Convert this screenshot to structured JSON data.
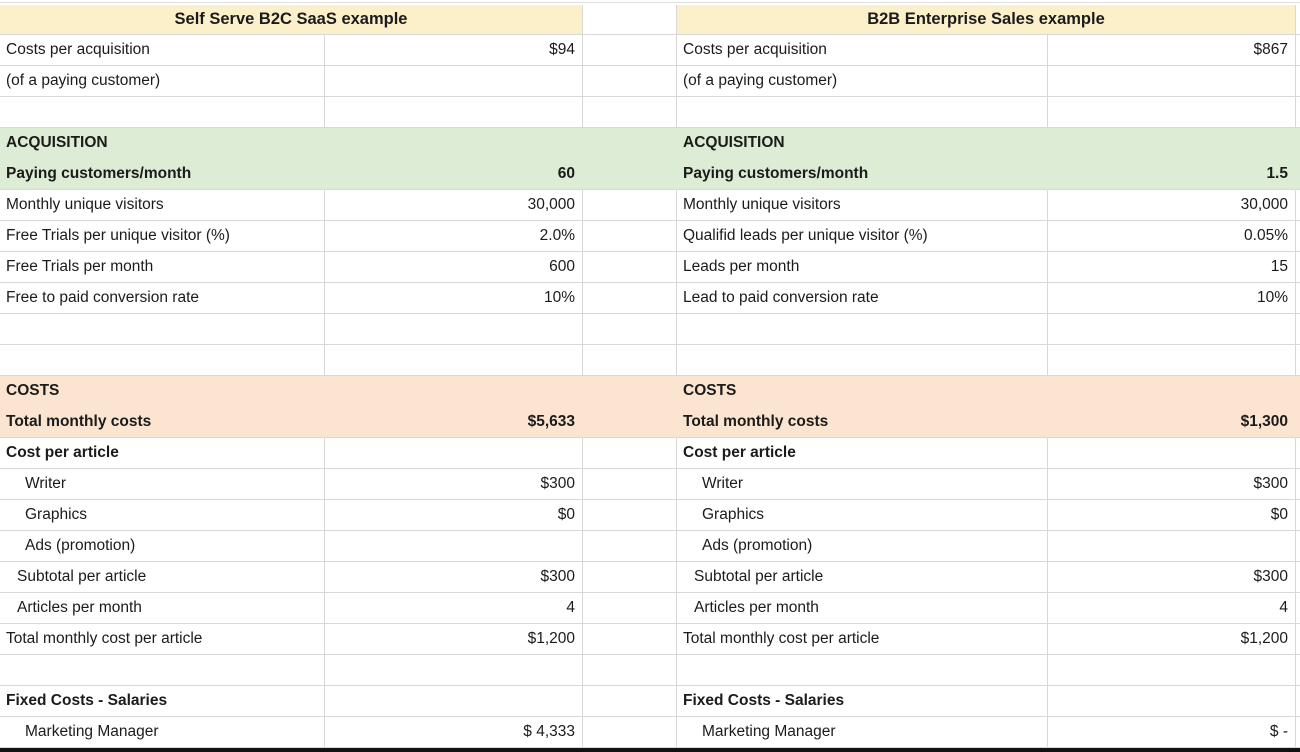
{
  "titles": {
    "left": "Self Serve B2C SaaS example",
    "right": "B2B Enterprise Sales example"
  },
  "colors": {
    "header_bg": "#fcf0ca",
    "green_bg": "#ddecd5",
    "orange_bg": "#fbe5d0",
    "grid": "#d8d8d8",
    "bottom_bar": "#121212"
  },
  "rows": [
    {
      "band": "none",
      "bold": false,
      "indent": 0,
      "left": {
        "label": "Costs per acquisition",
        "value": "$94"
      },
      "right": {
        "label": "Costs per acquisition",
        "value": "$867"
      }
    },
    {
      "band": "none",
      "bold": false,
      "indent": 0,
      "left": {
        "label": "(of a paying customer)",
        "value": ""
      },
      "right": {
        "label": "(of a paying customer)",
        "value": ""
      }
    },
    {
      "band": "none",
      "bold": false,
      "indent": 0,
      "left": {
        "label": "",
        "value": ""
      },
      "right": {
        "label": "",
        "value": ""
      }
    },
    {
      "band": "green",
      "bold": true,
      "indent": 0,
      "left": {
        "label": "ACQUISITION",
        "value": ""
      },
      "right": {
        "label": "ACQUISITION",
        "value": ""
      }
    },
    {
      "band": "green",
      "bold": true,
      "indent": 0,
      "left": {
        "label": "Paying customers/month",
        "value": "60"
      },
      "right": {
        "label": "Paying customers/month",
        "value": "1.5"
      }
    },
    {
      "band": "none",
      "bold": false,
      "indent": 0,
      "left": {
        "label": "Monthly unique visitors",
        "value": "30,000"
      },
      "right": {
        "label": "Monthly unique visitors",
        "value": "30,000"
      }
    },
    {
      "band": "none",
      "bold": false,
      "indent": 0,
      "left": {
        "label": "Free Trials per unique visitor (%)",
        "value": "2.0%"
      },
      "right": {
        "label": "Qualifid leads per unique visitor (%)",
        "value": "0.05%"
      }
    },
    {
      "band": "none",
      "bold": false,
      "indent": 0,
      "left": {
        "label": "Free Trials per month",
        "value": "600"
      },
      "right": {
        "label": "Leads per month",
        "value": "15"
      }
    },
    {
      "band": "none",
      "bold": false,
      "indent": 0,
      "left": {
        "label": "Free to paid conversion rate",
        "value": "10%"
      },
      "right": {
        "label": "Lead to paid conversion rate",
        "value": "10%"
      }
    },
    {
      "band": "none",
      "bold": false,
      "indent": 0,
      "left": {
        "label": "",
        "value": ""
      },
      "right": {
        "label": "",
        "value": ""
      }
    },
    {
      "band": "none",
      "bold": false,
      "indent": 0,
      "left": {
        "label": "",
        "value": ""
      },
      "right": {
        "label": "",
        "value": ""
      }
    },
    {
      "band": "orange",
      "bold": true,
      "indent": 0,
      "left": {
        "label": "COSTS",
        "value": ""
      },
      "right": {
        "label": "COSTS",
        "value": ""
      }
    },
    {
      "band": "orange",
      "bold": true,
      "indent": 0,
      "left": {
        "label": "Total monthly costs",
        "value": "$5,633"
      },
      "right": {
        "label": "Total monthly costs",
        "value": "$1,300"
      }
    },
    {
      "band": "none",
      "bold": true,
      "indent": 0,
      "left": {
        "label": "Cost per article",
        "value": ""
      },
      "right": {
        "label": "Cost per article",
        "value": ""
      }
    },
    {
      "band": "none",
      "bold": false,
      "indent": 2,
      "left": {
        "label": "Writer",
        "value": "$300"
      },
      "right": {
        "label": "Writer",
        "value": "$300"
      }
    },
    {
      "band": "none",
      "bold": false,
      "indent": 2,
      "left": {
        "label": "Graphics",
        "value": "$0"
      },
      "right": {
        "label": "Graphics",
        "value": "$0"
      }
    },
    {
      "band": "none",
      "bold": false,
      "indent": 2,
      "left": {
        "label": "Ads (promotion)",
        "value": ""
      },
      "right": {
        "label": "Ads (promotion)",
        "value": ""
      }
    },
    {
      "band": "none",
      "bold": false,
      "indent": 1,
      "left": {
        "label": "Subtotal per article",
        "value": "$300"
      },
      "right": {
        "label": "Subtotal per article",
        "value": "$300"
      }
    },
    {
      "band": "none",
      "bold": false,
      "indent": 1,
      "left": {
        "label": "Articles per month",
        "value": "4"
      },
      "right": {
        "label": "Articles per month",
        "value": "4"
      }
    },
    {
      "band": "none",
      "bold": false,
      "indent": 0,
      "left": {
        "label": "Total monthly cost per article",
        "value": "$1,200"
      },
      "right": {
        "label": "Total monthly cost per article",
        "value": "$1,200"
      }
    },
    {
      "band": "none",
      "bold": false,
      "indent": 0,
      "left": {
        "label": "",
        "value": ""
      },
      "right": {
        "label": "",
        "value": ""
      }
    },
    {
      "band": "none",
      "bold": true,
      "indent": 0,
      "left": {
        "label": "Fixed Costs - Salaries",
        "value": ""
      },
      "right": {
        "label": "Fixed Costs - Salaries",
        "value": ""
      }
    },
    {
      "band": "none",
      "bold": false,
      "indent": 2,
      "left": {
        "label": "Marketing Manager",
        "value": "$ 4,333"
      },
      "right": {
        "label": "Marketing Manager",
        "value": "$ -"
      }
    }
  ]
}
